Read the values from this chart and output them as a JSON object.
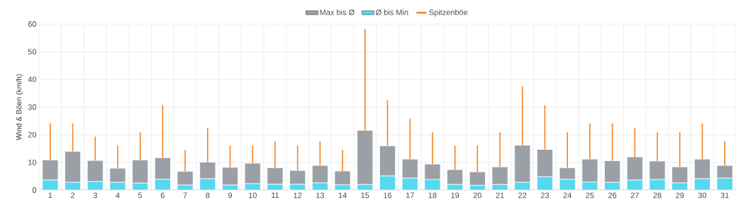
{
  "chart_data": {
    "type": "bar",
    "ylabel": "Wind & Böen (km/h)",
    "categories": [
      "1",
      "2",
      "3",
      "4",
      "5",
      "6",
      "7",
      "8",
      "9",
      "10",
      "11",
      "12",
      "13",
      "14",
      "15",
      "16",
      "17",
      "18",
      "19",
      "20",
      "21",
      "22",
      "23",
      "24",
      "25",
      "26",
      "27",
      "28",
      "29",
      "30",
      "31"
    ],
    "stacked": true,
    "ylim": [
      0,
      60
    ],
    "yticks": [
      0,
      10,
      20,
      30,
      40,
      50,
      60
    ],
    "grid": true,
    "legend": "top",
    "series": [
      {
        "name": "Ø bis Min",
        "color": "#55d8f0",
        "values": [
          3.6,
          2.8,
          3.1,
          2.8,
          2.5,
          3.9,
          1.8,
          4.1,
          1.8,
          2.3,
          2.1,
          2.1,
          2.6,
          1.9,
          2.0,
          5.1,
          4.3,
          3.8,
          2.0,
          1.7,
          2.0,
          2.8,
          4.8,
          3.9,
          2.9,
          2.8,
          3.6,
          3.8,
          2.6,
          4.1,
          4.3
        ]
      },
      {
        "name": "Max bis Ø",
        "color": "#9aa0a6",
        "values": [
          7.3,
          11.2,
          7.6,
          5.1,
          8.4,
          7.8,
          5.0,
          6.0,
          6.4,
          7.4,
          6.0,
          5.0,
          6.3,
          5.0,
          19.6,
          10.9,
          6.9,
          5.6,
          5.4,
          4.9,
          6.4,
          13.4,
          9.9,
          4.2,
          8.3,
          7.8,
          8.4,
          6.7,
          5.8,
          7.1,
          4.6
        ]
      },
      {
        "name": "Spitzenböe",
        "color": "#f58220",
        "type": "bar",
        "base": [
          10.9,
          14.0,
          10.7,
          7.9,
          10.9,
          11.7,
          6.8,
          10.1,
          8.2,
          9.7,
          8.1,
          7.1,
          8.9,
          6.9,
          21.6,
          16.0,
          11.2,
          9.4,
          7.4,
          6.6,
          8.4,
          16.2,
          14.7,
          8.1,
          11.2,
          10.6,
          12.0,
          10.5,
          8.4,
          11.2,
          8.9
        ],
        "values": [
          13.2,
          10.1,
          8.6,
          8.2,
          10.0,
          19.0,
          7.7,
          12.4,
          7.9,
          6.4,
          9.6,
          9.0,
          8.8,
          7.6,
          36.6,
          16.4,
          14.6,
          11.5,
          8.7,
          9.5,
          12.5,
          21.3,
          15.9,
          12.8,
          12.9,
          13.5,
          10.5,
          10.4,
          12.5,
          12.9,
          8.8
        ]
      }
    ]
  }
}
